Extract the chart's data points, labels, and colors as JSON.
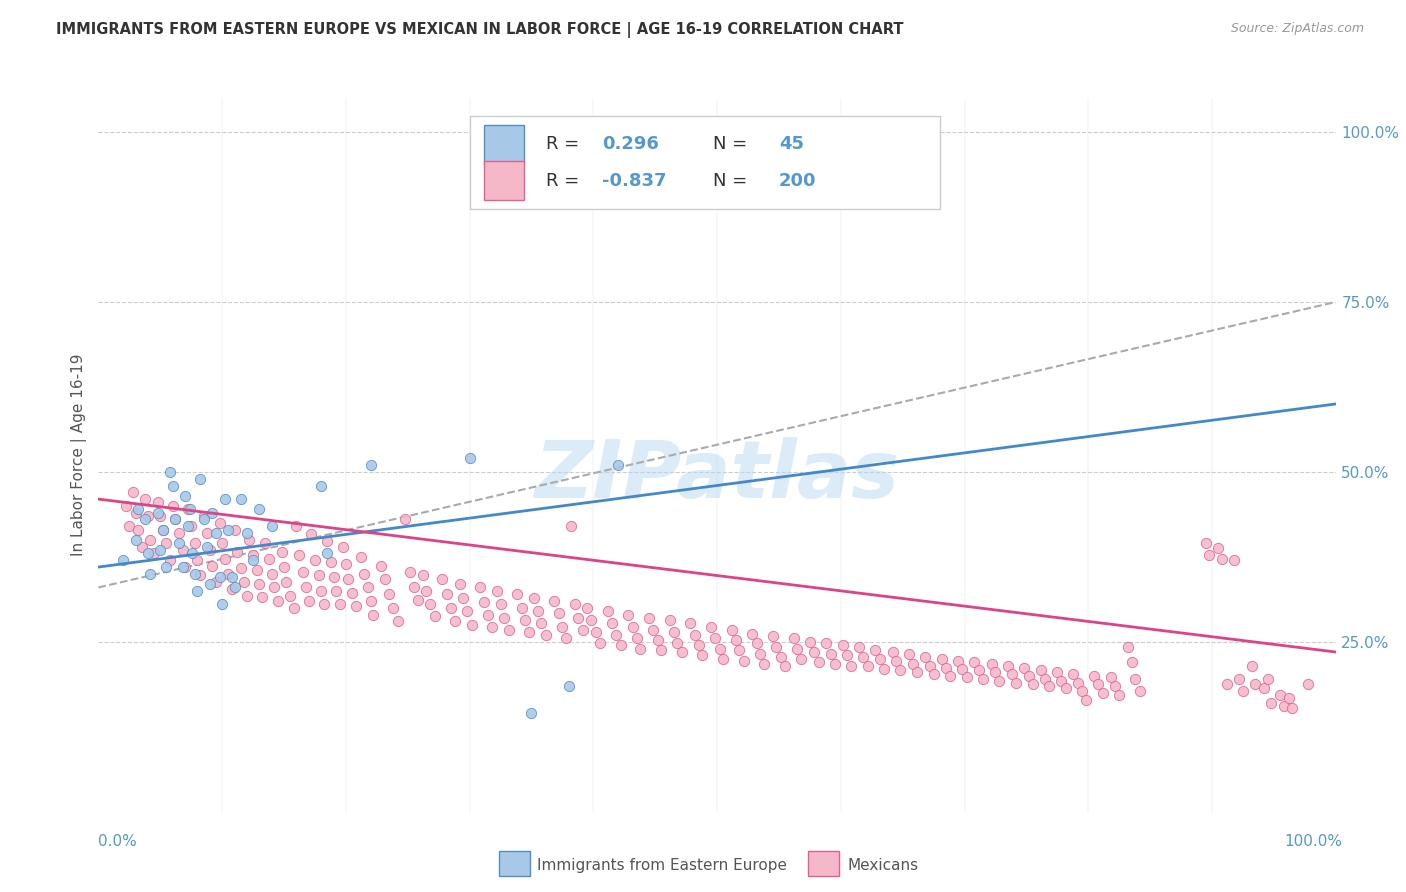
{
  "title": "IMMIGRANTS FROM EASTERN EUROPE VS MEXICAN IN LABOR FORCE | AGE 16-19 CORRELATION CHART",
  "source": "Source: ZipAtlas.com",
  "ylabel": "In Labor Force | Age 16-19",
  "xlim": [
    0,
    1.0
  ],
  "ylim": [
    0.0,
    1.05
  ],
  "xtick_positions": [
    0.0,
    1.0
  ],
  "xtick_labels": [
    "0.0%",
    "100.0%"
  ],
  "ytick_positions": [
    0.25,
    0.5,
    0.75,
    1.0
  ],
  "ytick_labels": [
    "25.0%",
    "50.0%",
    "75.0%",
    "100.0%"
  ],
  "legend_label1": "Immigrants from Eastern Europe",
  "legend_label2": "Mexicans",
  "R1": "0.296",
  "N1": "45",
  "R2": "-0.837",
  "N2": "200",
  "blue_fill": "#a8c8e8",
  "pink_fill": "#f4b8c8",
  "blue_edge": "#5090c0",
  "pink_edge": "#e06090",
  "blue_line": "#4488cc",
  "pink_line": "#dd4488",
  "dash_color": "#aaaaaa",
  "tick_color": "#5599cc",
  "watermark_color": "#b8d8f0",
  "background": "#ffffff",
  "blue_scatter": [
    [
      0.02,
      0.37
    ],
    [
      0.03,
      0.4
    ],
    [
      0.032,
      0.445
    ],
    [
      0.038,
      0.43
    ],
    [
      0.04,
      0.38
    ],
    [
      0.042,
      0.35
    ],
    [
      0.048,
      0.44
    ],
    [
      0.05,
      0.385
    ],
    [
      0.052,
      0.415
    ],
    [
      0.055,
      0.36
    ],
    [
      0.058,
      0.5
    ],
    [
      0.06,
      0.48
    ],
    [
      0.062,
      0.43
    ],
    [
      0.065,
      0.395
    ],
    [
      0.068,
      0.36
    ],
    [
      0.07,
      0.465
    ],
    [
      0.072,
      0.42
    ],
    [
      0.074,
      0.445
    ],
    [
      0.076,
      0.38
    ],
    [
      0.078,
      0.35
    ],
    [
      0.08,
      0.325
    ],
    [
      0.082,
      0.49
    ],
    [
      0.085,
      0.43
    ],
    [
      0.088,
      0.39
    ],
    [
      0.09,
      0.335
    ],
    [
      0.092,
      0.44
    ],
    [
      0.095,
      0.41
    ],
    [
      0.098,
      0.345
    ],
    [
      0.1,
      0.305
    ],
    [
      0.102,
      0.46
    ],
    [
      0.105,
      0.415
    ],
    [
      0.108,
      0.345
    ],
    [
      0.11,
      0.33
    ],
    [
      0.115,
      0.46
    ],
    [
      0.12,
      0.41
    ],
    [
      0.125,
      0.37
    ],
    [
      0.13,
      0.445
    ],
    [
      0.14,
      0.42
    ],
    [
      0.18,
      0.48
    ],
    [
      0.185,
      0.38
    ],
    [
      0.22,
      0.51
    ],
    [
      0.3,
      0.52
    ],
    [
      0.35,
      0.145
    ],
    [
      0.38,
      0.185
    ],
    [
      0.42,
      0.51
    ]
  ],
  "pink_scatter": [
    [
      0.022,
      0.45
    ],
    [
      0.025,
      0.42
    ],
    [
      0.028,
      0.47
    ],
    [
      0.03,
      0.44
    ],
    [
      0.032,
      0.415
    ],
    [
      0.035,
      0.39
    ],
    [
      0.038,
      0.46
    ],
    [
      0.04,
      0.435
    ],
    [
      0.042,
      0.4
    ],
    [
      0.045,
      0.38
    ],
    [
      0.048,
      0.455
    ],
    [
      0.05,
      0.435
    ],
    [
      0.052,
      0.415
    ],
    [
      0.055,
      0.395
    ],
    [
      0.058,
      0.37
    ],
    [
      0.06,
      0.45
    ],
    [
      0.062,
      0.43
    ],
    [
      0.065,
      0.41
    ],
    [
      0.068,
      0.385
    ],
    [
      0.07,
      0.36
    ],
    [
      0.072,
      0.445
    ],
    [
      0.075,
      0.42
    ],
    [
      0.078,
      0.395
    ],
    [
      0.08,
      0.37
    ],
    [
      0.082,
      0.348
    ],
    [
      0.085,
      0.435
    ],
    [
      0.088,
      0.41
    ],
    [
      0.09,
      0.385
    ],
    [
      0.092,
      0.362
    ],
    [
      0.095,
      0.338
    ],
    [
      0.098,
      0.425
    ],
    [
      0.1,
      0.395
    ],
    [
      0.102,
      0.372
    ],
    [
      0.105,
      0.35
    ],
    [
      0.108,
      0.328
    ],
    [
      0.11,
      0.415
    ],
    [
      0.112,
      0.382
    ],
    [
      0.115,
      0.358
    ],
    [
      0.118,
      0.338
    ],
    [
      0.12,
      0.318
    ],
    [
      0.122,
      0.4
    ],
    [
      0.125,
      0.378
    ],
    [
      0.128,
      0.356
    ],
    [
      0.13,
      0.335
    ],
    [
      0.132,
      0.316
    ],
    [
      0.135,
      0.395
    ],
    [
      0.138,
      0.372
    ],
    [
      0.14,
      0.35
    ],
    [
      0.142,
      0.33
    ],
    [
      0.145,
      0.31
    ],
    [
      0.148,
      0.382
    ],
    [
      0.15,
      0.36
    ],
    [
      0.152,
      0.338
    ],
    [
      0.155,
      0.318
    ],
    [
      0.158,
      0.3
    ],
    [
      0.16,
      0.42
    ],
    [
      0.162,
      0.378
    ],
    [
      0.165,
      0.352
    ],
    [
      0.168,
      0.33
    ],
    [
      0.17,
      0.31
    ],
    [
      0.172,
      0.408
    ],
    [
      0.175,
      0.37
    ],
    [
      0.178,
      0.348
    ],
    [
      0.18,
      0.325
    ],
    [
      0.182,
      0.305
    ],
    [
      0.185,
      0.398
    ],
    [
      0.188,
      0.368
    ],
    [
      0.19,
      0.345
    ],
    [
      0.192,
      0.325
    ],
    [
      0.195,
      0.305
    ],
    [
      0.198,
      0.39
    ],
    [
      0.2,
      0.365
    ],
    [
      0.202,
      0.342
    ],
    [
      0.205,
      0.322
    ],
    [
      0.208,
      0.302
    ],
    [
      0.212,
      0.375
    ],
    [
      0.215,
      0.35
    ],
    [
      0.218,
      0.33
    ],
    [
      0.22,
      0.31
    ],
    [
      0.222,
      0.29
    ],
    [
      0.228,
      0.362
    ],
    [
      0.232,
      0.342
    ],
    [
      0.235,
      0.32
    ],
    [
      0.238,
      0.3
    ],
    [
      0.242,
      0.28
    ],
    [
      0.248,
      0.43
    ],
    [
      0.252,
      0.352
    ],
    [
      0.255,
      0.33
    ],
    [
      0.258,
      0.312
    ],
    [
      0.262,
      0.348
    ],
    [
      0.265,
      0.325
    ],
    [
      0.268,
      0.305
    ],
    [
      0.272,
      0.288
    ],
    [
      0.278,
      0.342
    ],
    [
      0.282,
      0.32
    ],
    [
      0.285,
      0.3
    ],
    [
      0.288,
      0.28
    ],
    [
      0.292,
      0.335
    ],
    [
      0.295,
      0.315
    ],
    [
      0.298,
      0.295
    ],
    [
      0.302,
      0.275
    ],
    [
      0.308,
      0.33
    ],
    [
      0.312,
      0.308
    ],
    [
      0.315,
      0.29
    ],
    [
      0.318,
      0.272
    ],
    [
      0.322,
      0.325
    ],
    [
      0.325,
      0.305
    ],
    [
      0.328,
      0.285
    ],
    [
      0.332,
      0.268
    ],
    [
      0.338,
      0.32
    ],
    [
      0.342,
      0.3
    ],
    [
      0.345,
      0.282
    ],
    [
      0.348,
      0.265
    ],
    [
      0.352,
      0.315
    ],
    [
      0.355,
      0.295
    ],
    [
      0.358,
      0.278
    ],
    [
      0.362,
      0.26
    ],
    [
      0.368,
      0.31
    ],
    [
      0.372,
      0.292
    ],
    [
      0.375,
      0.272
    ],
    [
      0.378,
      0.255
    ],
    [
      0.382,
      0.42
    ],
    [
      0.385,
      0.305
    ],
    [
      0.388,
      0.285
    ],
    [
      0.392,
      0.268
    ],
    [
      0.395,
      0.3
    ],
    [
      0.398,
      0.282
    ],
    [
      0.402,
      0.265
    ],
    [
      0.405,
      0.248
    ],
    [
      0.412,
      0.295
    ],
    [
      0.415,
      0.278
    ],
    [
      0.418,
      0.26
    ],
    [
      0.422,
      0.245
    ],
    [
      0.428,
      0.29
    ],
    [
      0.432,
      0.272
    ],
    [
      0.435,
      0.255
    ],
    [
      0.438,
      0.24
    ],
    [
      0.445,
      0.285
    ],
    [
      0.448,
      0.268
    ],
    [
      0.452,
      0.252
    ],
    [
      0.455,
      0.238
    ],
    [
      0.462,
      0.282
    ],
    [
      0.465,
      0.265
    ],
    [
      0.468,
      0.248
    ],
    [
      0.472,
      0.235
    ],
    [
      0.478,
      0.278
    ],
    [
      0.482,
      0.26
    ],
    [
      0.485,
      0.245
    ],
    [
      0.488,
      0.23
    ],
    [
      0.495,
      0.272
    ],
    [
      0.498,
      0.255
    ],
    [
      0.502,
      0.24
    ],
    [
      0.505,
      0.225
    ],
    [
      0.512,
      0.268
    ],
    [
      0.515,
      0.252
    ],
    [
      0.518,
      0.238
    ],
    [
      0.522,
      0.222
    ],
    [
      0.528,
      0.262
    ],
    [
      0.532,
      0.248
    ],
    [
      0.535,
      0.232
    ],
    [
      0.538,
      0.218
    ],
    [
      0.545,
      0.258
    ],
    [
      0.548,
      0.242
    ],
    [
      0.552,
      0.228
    ],
    [
      0.555,
      0.215
    ],
    [
      0.562,
      0.255
    ],
    [
      0.565,
      0.24
    ],
    [
      0.568,
      0.225
    ],
    [
      0.575,
      0.25
    ],
    [
      0.578,
      0.235
    ],
    [
      0.582,
      0.22
    ],
    [
      0.588,
      0.248
    ],
    [
      0.592,
      0.232
    ],
    [
      0.595,
      0.218
    ],
    [
      0.602,
      0.245
    ],
    [
      0.605,
      0.23
    ],
    [
      0.608,
      0.215
    ],
    [
      0.615,
      0.242
    ],
    [
      0.618,
      0.228
    ],
    [
      0.622,
      0.214
    ],
    [
      0.628,
      0.238
    ],
    [
      0.632,
      0.224
    ],
    [
      0.635,
      0.21
    ],
    [
      0.642,
      0.235
    ],
    [
      0.645,
      0.222
    ],
    [
      0.648,
      0.208
    ],
    [
      0.655,
      0.232
    ],
    [
      0.658,
      0.218
    ],
    [
      0.662,
      0.205
    ],
    [
      0.668,
      0.228
    ],
    [
      0.672,
      0.215
    ],
    [
      0.675,
      0.202
    ],
    [
      0.682,
      0.225
    ],
    [
      0.685,
      0.212
    ],
    [
      0.688,
      0.2
    ],
    [
      0.695,
      0.222
    ],
    [
      0.698,
      0.21
    ],
    [
      0.702,
      0.198
    ],
    [
      0.708,
      0.22
    ],
    [
      0.712,
      0.208
    ],
    [
      0.715,
      0.195
    ],
    [
      0.722,
      0.218
    ],
    [
      0.725,
      0.205
    ],
    [
      0.728,
      0.192
    ],
    [
      0.735,
      0.215
    ],
    [
      0.738,
      0.202
    ],
    [
      0.742,
      0.19
    ],
    [
      0.748,
      0.212
    ],
    [
      0.752,
      0.2
    ],
    [
      0.755,
      0.188
    ],
    [
      0.762,
      0.208
    ],
    [
      0.765,
      0.196
    ],
    [
      0.768,
      0.185
    ],
    [
      0.775,
      0.205
    ],
    [
      0.778,
      0.192
    ],
    [
      0.782,
      0.182
    ],
    [
      0.788,
      0.202
    ],
    [
      0.792,
      0.19
    ],
    [
      0.795,
      0.178
    ],
    [
      0.798,
      0.165
    ],
    [
      0.805,
      0.2
    ],
    [
      0.808,
      0.188
    ],
    [
      0.812,
      0.175
    ],
    [
      0.818,
      0.198
    ],
    [
      0.822,
      0.185
    ],
    [
      0.825,
      0.172
    ],
    [
      0.832,
      0.242
    ],
    [
      0.835,
      0.22
    ],
    [
      0.838,
      0.195
    ],
    [
      0.842,
      0.178
    ],
    [
      0.895,
      0.395
    ],
    [
      0.898,
      0.378
    ],
    [
      0.905,
      0.388
    ],
    [
      0.908,
      0.372
    ],
    [
      0.912,
      0.188
    ],
    [
      0.918,
      0.37
    ],
    [
      0.922,
      0.195
    ],
    [
      0.925,
      0.178
    ],
    [
      0.932,
      0.215
    ],
    [
      0.935,
      0.188
    ],
    [
      0.942,
      0.182
    ],
    [
      0.945,
      0.195
    ],
    [
      0.948,
      0.16
    ],
    [
      0.955,
      0.172
    ],
    [
      0.958,
      0.155
    ],
    [
      0.962,
      0.168
    ],
    [
      0.965,
      0.152
    ],
    [
      0.978,
      0.188
    ]
  ],
  "blue_reg": [
    0.0,
    1.0,
    0.36,
    0.6
  ],
  "pink_reg": [
    0.0,
    1.0,
    0.46,
    0.235
  ],
  "dash_reg": [
    0.0,
    1.0,
    0.33,
    0.75
  ]
}
